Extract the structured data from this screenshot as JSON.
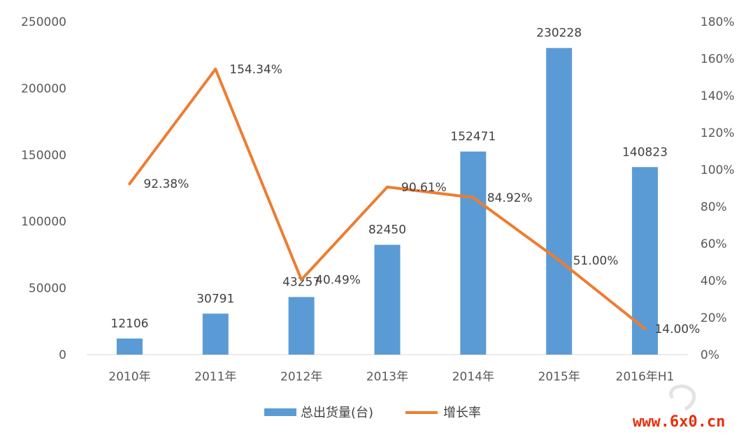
{
  "chart_data": {
    "type": "bar",
    "categories": [
      "2010年",
      "2011年",
      "2012年",
      "2013年",
      "2014年",
      "2015年",
      "2016年H1"
    ],
    "series": [
      {
        "name": "总出货量(台)",
        "type": "bar",
        "axis": "left",
        "values": [
          12106,
          30791,
          43257,
          82450,
          152471,
          230228,
          140823
        ],
        "labels": [
          "12106",
          "30791",
          "43257",
          "82450",
          "152471",
          "230228",
          "140823"
        ],
        "color": "#5b9bd5"
      },
      {
        "name": "增长率",
        "type": "line",
        "axis": "right",
        "values": [
          92.38,
          154.34,
          40.49,
          90.61,
          84.92,
          51.0,
          14.0
        ],
        "labels": [
          "92.38%",
          "154.34%",
          "40.49%",
          "90.61%",
          "84.92%",
          "51.00%",
          "14.00%"
        ],
        "color": "#ed7d31"
      }
    ],
    "left_axis": {
      "min": 0,
      "max": 250000,
      "ticks": [
        "0",
        "50000",
        "100000",
        "150000",
        "200000",
        "250000"
      ]
    },
    "right_axis": {
      "min": 0,
      "max": 180,
      "ticks": [
        "0%",
        "20%",
        "40%",
        "60%",
        "80%",
        "100%",
        "120%",
        "140%",
        "160%",
        "180%"
      ]
    },
    "grid": false,
    "legend": "bottom"
  },
  "watermark": {
    "text": "www.6x0.cn",
    "color": "#e8300c"
  }
}
